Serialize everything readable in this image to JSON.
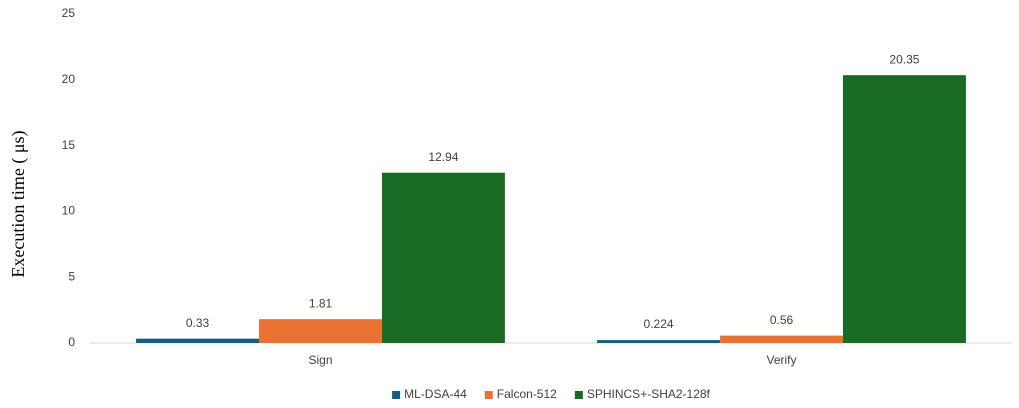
{
  "chart_data": {
    "type": "bar",
    "y_label": "Execution time ( μs)",
    "categories": [
      "Sign",
      "Verify"
    ],
    "series": [
      {
        "name": "ML-DSA-44",
        "color": "#156082",
        "values": [
          0.33,
          0.224
        ]
      },
      {
        "name": "Falcon-512",
        "color": "#e97132",
        "values": [
          1.81,
          0.56
        ]
      },
      {
        "name": "SPHINCS+-SHA2-128f",
        "color": "#196b24",
        "values": [
          12.94,
          20.35
        ]
      }
    ],
    "ylim": [
      0,
      25
    ],
    "yticks": [
      0,
      5,
      10,
      15,
      20,
      25
    ],
    "grid": false,
    "legend": "bottom"
  }
}
